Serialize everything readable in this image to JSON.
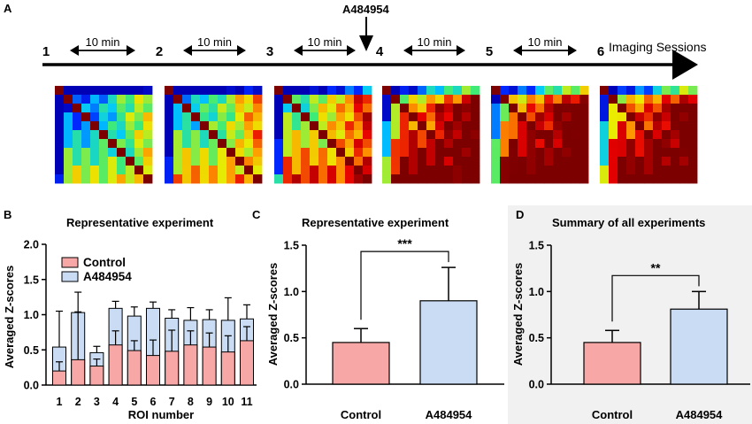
{
  "panel_labels": {
    "a": "A",
    "b": "B",
    "c": "C",
    "d": "D"
  },
  "timeline": {
    "sessions": [
      "1",
      "2",
      "3",
      "4",
      "5",
      "6"
    ],
    "interval_label": "10 min",
    "drug_label": "A484954",
    "axis_label": "Imaging Sessions"
  },
  "colors": {
    "control": "#f7a8a6",
    "drug": "#c9dcf3",
    "panel_d_bg": "#f1f1f1",
    "heatmap_low": "#0000b4",
    "heatmap_high": "#7d0000"
  },
  "heatmap_legend": "ROI × ROI correlation matrices per imaging session (blue = low, dark red = high)",
  "chart_data": [
    {
      "type": "heatmap",
      "title": "",
      "sessions": [
        "1",
        "2",
        "3",
        "4",
        "5",
        "6"
      ],
      "rois": 11,
      "levels_per_session": [
        0.3,
        0.42,
        0.55,
        0.8,
        0.85,
        0.82
      ]
    },
    {
      "type": "bar",
      "stacked": true,
      "title": "Representative experiment",
      "xlabel": "ROI number",
      "ylabel": "Averaged Z-scores",
      "categories": [
        "1",
        "2",
        "3",
        "4",
        "5",
        "6",
        "7",
        "8",
        "9",
        "10",
        "11"
      ],
      "ylim": [
        0,
        2.0
      ],
      "yticks": [
        "0.0",
        "0.5",
        "1.0",
        "1.5",
        "2.0"
      ],
      "legend": [
        "Control",
        "A484954"
      ],
      "series": [
        {
          "name": "Control",
          "values": [
            0.2,
            0.36,
            0.27,
            0.57,
            0.49,
            0.42,
            0.48,
            0.57,
            0.54,
            0.47,
            0.63
          ],
          "err": [
            0.13,
            0.68,
            0.1,
            0.2,
            0.14,
            0.22,
            0.3,
            0.2,
            0.2,
            0.23,
            0.2
          ]
        },
        {
          "name": "A484954",
          "values": [
            0.54,
            1.03,
            0.46,
            1.09,
            0.98,
            1.09,
            0.95,
            0.92,
            0.93,
            0.92,
            0.94
          ],
          "err": [
            0.51,
            0.29,
            0.09,
            0.1,
            0.13,
            0.09,
            0.12,
            0.18,
            0.14,
            0.32,
            0.2
          ]
        }
      ]
    },
    {
      "type": "bar",
      "title": "Representative experiment",
      "xlabel": "",
      "ylabel": "Averaged  Z-scores",
      "categories": [
        "Control",
        "A484954"
      ],
      "values": [
        0.45,
        0.9
      ],
      "err": [
        0.15,
        0.36
      ],
      "ylim": [
        0,
        1.5
      ],
      "yticks": [
        "0.0",
        "0.5",
        "1.0",
        "1.5"
      ],
      "significance": "***"
    },
    {
      "type": "bar",
      "title": "Summary of all experiments",
      "xlabel": "",
      "ylabel": "Averaged  Z-scores",
      "categories": [
        "Control",
        "A484954"
      ],
      "values": [
        0.45,
        0.81
      ],
      "err": [
        0.13,
        0.19
      ],
      "ylim": [
        0,
        1.5
      ],
      "yticks": [
        "0.0",
        "0.5",
        "1.0",
        "1.5"
      ],
      "significance": "**"
    }
  ]
}
